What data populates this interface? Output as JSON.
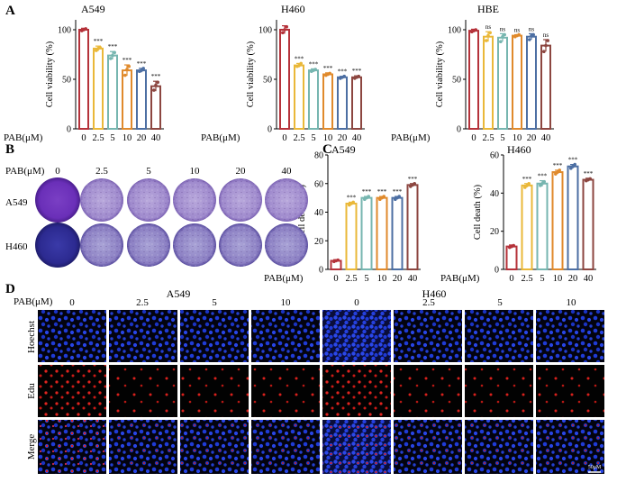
{
  "chart_data": [
    {
      "id": "A1",
      "type": "bar",
      "title": "A549",
      "ylabel": "Cell viability (%)",
      "xlabel": "PAB(μM)",
      "categories": [
        "0",
        "2.5",
        "5",
        "10",
        "20",
        "40"
      ],
      "values": [
        100,
        81,
        74,
        59,
        59,
        43
      ],
      "errors": [
        1.5,
        2.5,
        4,
        5.5,
        2,
        5
      ],
      "points": [
        [
          99,
          100,
          101
        ],
        [
          79,
          81,
          82
        ],
        [
          71,
          74,
          77
        ],
        [
          54,
          60,
          63
        ],
        [
          58,
          59,
          61
        ],
        [
          39,
          44,
          47
        ]
      ],
      "significance": [
        "",
        "***",
        "***",
        "***",
        "***",
        "***"
      ],
      "ylim": [
        0,
        110
      ],
      "yticks": [
        0,
        50,
        100
      ]
    },
    {
      "id": "A2",
      "type": "bar",
      "title": "H460",
      "ylabel": "Cell viability (%)",
      "xlabel": "PAB(μM)",
      "categories": [
        "0",
        "2.5",
        "5",
        "10",
        "20",
        "40"
      ],
      "values": [
        100,
        64,
        59,
        55,
        52,
        52
      ],
      "errors": [
        4,
        2,
        1.5,
        1.5,
        1,
        1.5
      ],
      "points": [
        [
          97,
          100,
          103
        ],
        [
          63,
          64,
          66
        ],
        [
          58,
          59,
          60
        ],
        [
          54,
          55,
          56
        ],
        [
          51,
          52,
          53
        ],
        [
          51,
          52,
          53
        ]
      ],
      "significance": [
        "",
        "***",
        "***",
        "***",
        "***",
        "***"
      ],
      "ylim": [
        0,
        110
      ],
      "yticks": [
        0,
        50,
        100
      ]
    },
    {
      "id": "A3",
      "type": "bar",
      "title": "HBE",
      "ylabel": "Cell viability (%)",
      "xlabel": "PAB(μM)",
      "categories": [
        "0",
        "2.5",
        "5",
        "10",
        "20",
        "40"
      ],
      "values": [
        99,
        93,
        92,
        94,
        93,
        84
      ],
      "errors": [
        1.5,
        5,
        4,
        1,
        3,
        6
      ],
      "points": [
        [
          98,
          99,
          100
        ],
        [
          89,
          94,
          97
        ],
        [
          88,
          93,
          95
        ],
        [
          93,
          94,
          95
        ],
        [
          90,
          94,
          95
        ],
        [
          78,
          84,
          89
        ]
      ],
      "significance": [
        "",
        "ns",
        "ns",
        "ns",
        "ns",
        "ns"
      ],
      "ylim": [
        0,
        110
      ],
      "yticks": [
        0,
        50,
        100
      ]
    },
    {
      "id": "C1",
      "type": "bar",
      "title": "A549",
      "ylabel": "Cell death (%)",
      "xlabel": "PAB(μM)",
      "categories": [
        "0",
        "2.5",
        "5",
        "10",
        "20",
        "40"
      ],
      "values": [
        6,
        46,
        50,
        50,
        50,
        59
      ],
      "errors": [
        0.8,
        1,
        1,
        1,
        1,
        1
      ],
      "points": [
        [
          5.5,
          6,
          6.5
        ],
        [
          45,
          46,
          47
        ],
        [
          49,
          50,
          51
        ],
        [
          49,
          50,
          51
        ],
        [
          49,
          50,
          51
        ],
        [
          58,
          59,
          60
        ]
      ],
      "significance": [
        "",
        "***",
        "***",
        "***",
        "***",
        "***"
      ],
      "ylim": [
        0,
        80
      ],
      "yticks": [
        0,
        20,
        40,
        60,
        80
      ]
    },
    {
      "id": "C2",
      "type": "bar",
      "title": "H460",
      "ylabel": "Cell death (%)",
      "xlabel": "PAB(μM)",
      "categories": [
        "0",
        "2.5",
        "5",
        "10",
        "20",
        "40"
      ],
      "values": [
        12,
        44,
        45,
        51,
        54,
        47
      ],
      "errors": [
        0.8,
        1,
        1.5,
        1,
        1,
        0.8
      ],
      "points": [
        [
          11.5,
          12,
          12.5
        ],
        [
          43,
          44,
          45
        ],
        [
          44,
          45,
          46
        ],
        [
          50,
          51,
          52
        ],
        [
          53,
          54,
          55
        ],
        [
          46.5,
          47,
          47.5
        ]
      ],
      "significance": [
        "",
        "***",
        "***",
        "***",
        "***",
        "***"
      ],
      "ylim": [
        0,
        60
      ],
      "yticks": [
        0,
        20,
        40,
        60
      ]
    }
  ],
  "bar_colors": [
    "#b5323a",
    "#eab839",
    "#77b6b0",
    "#e08a2c",
    "#4d6fa3",
    "#8c4640"
  ],
  "panel_labels": {
    "a": "A",
    "b": "B",
    "c": "C",
    "d": "D"
  },
  "panel_b": {
    "conc_label": "PAB(μM)",
    "concentrations": [
      "0",
      "2.5",
      "5",
      "10",
      "20",
      "40"
    ],
    "rows": [
      "A549",
      "H460"
    ]
  },
  "panel_d": {
    "conc_label": "PAB(μM)",
    "groups": [
      "A549",
      "H460"
    ],
    "concentrations": [
      "0",
      "2.5",
      "5",
      "10",
      "0",
      "2.5",
      "5",
      "10"
    ],
    "rows": [
      "Hoechst",
      "Edu",
      "Merge"
    ],
    "scale_bar": "50μM"
  }
}
